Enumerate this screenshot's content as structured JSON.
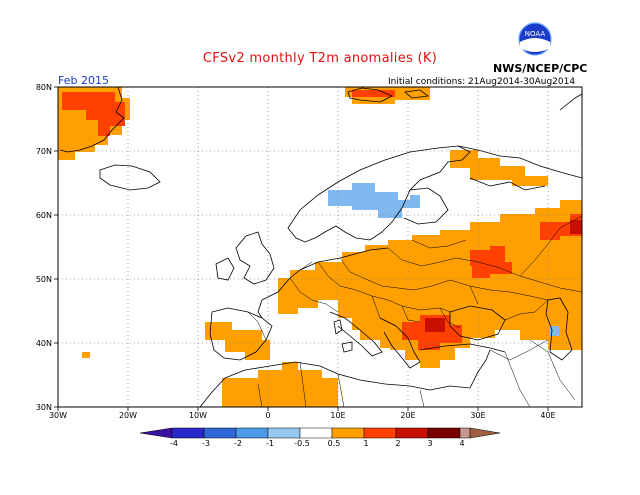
{
  "header": {
    "title": "CFSv2 monthly T2m anomalies (K)",
    "agency": "NWS/NCEP/CPC",
    "logo_text": "NOAA",
    "period": "Feb 2015",
    "initial_conditions": "Initial conditions: 21Aug2014-30Aug2014"
  },
  "map": {
    "lon_range": [
      -30,
      45
    ],
    "lat_range": [
      30,
      80
    ],
    "lon_labels": [
      "30W",
      "20W",
      "10W",
      "0",
      "10E",
      "20E",
      "30E",
      "40E"
    ],
    "lat_labels": [
      "30N",
      "40N",
      "50N",
      "60N",
      "70N",
      "80N"
    ]
  },
  "legend": {
    "labels": [
      "-4",
      "-3",
      "-2",
      "-1",
      "-0.5",
      "0.5",
      "1",
      "2",
      "3",
      "4"
    ],
    "colors": [
      "#3a10a0",
      "#2828c8",
      "#2e68d8",
      "#4a9ae8",
      "#96c8f0",
      "#ffffff",
      "#ffa000",
      "#ff4000",
      "#c81000",
      "#7a0000",
      "#c89890",
      "#a06040"
    ]
  },
  "colors": {
    "title": "#e01010",
    "period": "#1a3cc8",
    "weak_warm": "#ffa000",
    "mod_warm": "#ff4000",
    "strong_warm": "#c81000",
    "weak_cold": "#80b8f0"
  },
  "anomaly_regions": [
    {
      "name": "greenland-weak-warm",
      "level": "weak_warm"
    },
    {
      "name": "greenland-moderate-warm",
      "level": "mod_warm"
    },
    {
      "name": "svalbard-warm",
      "level": "weak_warm"
    },
    {
      "name": "scandinavia-cold",
      "level": "weak_cold"
    },
    {
      "name": "central-europe-warm",
      "level": "weak_warm"
    },
    {
      "name": "eastern-europe-warm",
      "level": "weak_warm"
    },
    {
      "name": "russia-moderate-warm",
      "level": "mod_warm"
    },
    {
      "name": "balkans-moderate-warm",
      "level": "mod_warm"
    },
    {
      "name": "iberia-warm",
      "level": "weak_warm"
    },
    {
      "name": "north-africa-warm",
      "level": "weak_warm"
    }
  ]
}
